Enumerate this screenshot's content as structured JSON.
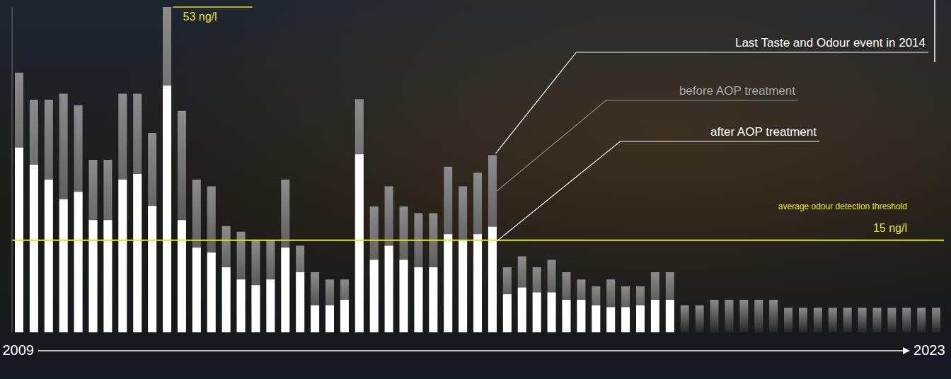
{
  "chart_data": {
    "type": "bar",
    "categories": [
      "2009",
      null,
      null,
      null,
      null,
      null,
      null,
      null,
      null,
      null,
      null,
      null,
      null,
      null,
      null,
      null,
      null,
      null,
      null,
      null,
      null,
      null,
      null,
      null,
      null,
      null,
      null,
      null,
      null,
      null,
      null,
      null,
      null,
      null,
      null,
      null,
      null,
      null,
      null,
      null,
      null,
      null,
      null,
      null,
      null,
      null,
      null,
      null,
      null,
      null,
      null,
      null,
      null,
      null,
      null,
      null,
      null,
      null,
      null,
      null,
      null,
      null,
      "2023"
    ],
    "series": [
      {
        "name": "before AOP treatment",
        "color": "#8c8c8c",
        "values": [
          42.3,
          37.9,
          37.9,
          38.9,
          37.0,
          28.1,
          28.1,
          38.9,
          38.9,
          32.5,
          53.0,
          36.1,
          24.9,
          23.8,
          17.3,
          16.4,
          15.1,
          15.1,
          24.9,
          14.1,
          9.8,
          8.6,
          8.6,
          38.0,
          20.5,
          23.8,
          20.5,
          19.4,
          19.4,
          27.0,
          23.8,
          26.0,
          28.9,
          10.6,
          12.4,
          10.6,
          11.8,
          9.8,
          8.6,
          7.5,
          8.6,
          7.5,
          7.5,
          9.8,
          9.8,
          4.4,
          4.4,
          5.3,
          5.3,
          5.3,
          5.3,
          5.3,
          4.0,
          4.0,
          4.0,
          4.0,
          4.0,
          4.0,
          4.0,
          4.0,
          4.0,
          4.0,
          4.0
        ]
      },
      {
        "name": "after AOP treatment",
        "color": "#ffffff",
        "values": [
          30.1,
          27.3,
          24.9,
          21.7,
          22.9,
          18.3,
          18.3,
          24.9,
          25.8,
          20.6,
          40.2,
          18.3,
          13.8,
          13.0,
          10.6,
          8.6,
          7.7,
          8.6,
          13.8,
          9.8,
          4.4,
          4.4,
          5.3,
          29.0,
          11.8,
          14.1,
          11.8,
          10.6,
          10.6,
          16.0,
          15.0,
          16.0,
          17.2,
          6.2,
          7.3,
          6.5,
          6.5,
          5.3,
          5.3,
          4.4,
          4.1,
          4.1,
          4.4,
          5.3,
          5.3,
          null,
          null,
          null,
          null,
          null,
          null,
          null,
          null,
          null,
          null,
          null,
          null,
          null,
          null,
          null,
          null,
          null,
          null
        ]
      }
    ],
    "ylim": [
      0,
      53
    ],
    "tick_labels": "x",
    "grid": false,
    "annotation": "Last Taste and Odour event in 2014",
    "peak": {
      "value": 53,
      "label": "53 ng/l"
    },
    "threshold": {
      "value": 15,
      "label": "15 ng/l",
      "text": "average odour detection threshold"
    }
  }
}
